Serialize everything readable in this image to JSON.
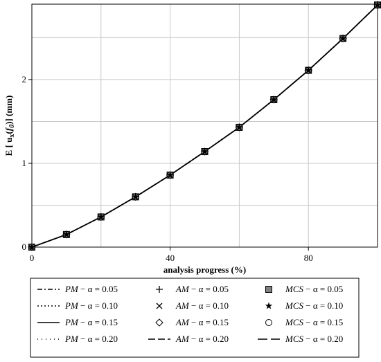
{
  "chart_data": {
    "type": "line",
    "xlabel": "analysis progress (%)",
    "ylabel_parts": {
      "prefix": "E",
      "u": "u",
      "sub": "x",
      "arg": "f",
      "arg_sub": "0",
      "unit": "(mm)"
    },
    "xlim": [
      0,
      100
    ],
    "ylim": [
      0,
      2.9
    ],
    "x_ticks": [
      0,
      40,
      80
    ],
    "y_ticks": [
      0,
      1,
      2
    ],
    "x_grid": [
      0,
      20,
      40,
      60,
      80,
      100
    ],
    "y_grid": [
      0,
      0.5,
      1,
      1.5,
      2,
      2.5
    ],
    "grid": true,
    "legend_position": "bottom",
    "x": [
      0,
      10,
      20,
      30,
      40,
      50,
      60,
      70,
      80,
      90,
      100
    ],
    "series": [
      {
        "method": "PM",
        "alpha": "0.05",
        "style": "dashdot",
        "values": [
          0,
          0.15,
          0.36,
          0.6,
          0.86,
          1.14,
          1.43,
          1.76,
          2.11,
          2.49,
          2.89
        ]
      },
      {
        "method": "PM",
        "alpha": "0.10",
        "style": "dotted",
        "values": [
          0,
          0.15,
          0.36,
          0.6,
          0.86,
          1.14,
          1.43,
          1.76,
          2.11,
          2.49,
          2.89
        ]
      },
      {
        "method": "PM",
        "alpha": "0.15",
        "style": "solid",
        "values": [
          0,
          0.15,
          0.36,
          0.6,
          0.86,
          1.14,
          1.43,
          1.76,
          2.11,
          2.49,
          2.89
        ]
      },
      {
        "method": "PM",
        "alpha": "0.20",
        "style": "sparsedot",
        "values": [
          0,
          0.15,
          0.36,
          0.6,
          0.86,
          1.14,
          1.43,
          1.76,
          2.11,
          2.49,
          2.89
        ]
      },
      {
        "method": "AM",
        "alpha": "0.05",
        "style": "plus",
        "values": [
          0,
          0.15,
          0.36,
          0.6,
          0.86,
          1.14,
          1.43,
          1.76,
          2.11,
          2.49,
          2.89
        ]
      },
      {
        "method": "AM",
        "alpha": "0.10",
        "style": "cross",
        "values": [
          0,
          0.15,
          0.36,
          0.6,
          0.86,
          1.14,
          1.43,
          1.76,
          2.11,
          2.49,
          2.89
        ]
      },
      {
        "method": "AM",
        "alpha": "0.15",
        "style": "diamond",
        "values": [
          0,
          0.15,
          0.36,
          0.6,
          0.86,
          1.14,
          1.43,
          1.76,
          2.11,
          2.49,
          2.89
        ]
      },
      {
        "method": "AM",
        "alpha": "0.20",
        "style": "dash",
        "values": [
          0,
          0.15,
          0.36,
          0.6,
          0.86,
          1.14,
          1.43,
          1.76,
          2.11,
          2.49,
          2.89
        ]
      },
      {
        "method": "MCS",
        "alpha": "0.05",
        "style": "square",
        "values": [
          0,
          0.15,
          0.36,
          0.6,
          0.86,
          1.14,
          1.43,
          1.76,
          2.11,
          2.49,
          2.89
        ]
      },
      {
        "method": "MCS",
        "alpha": "0.10",
        "style": "star",
        "values": [
          0,
          0.15,
          0.36,
          0.6,
          0.86,
          1.14,
          1.43,
          1.76,
          2.11,
          2.49,
          2.89
        ]
      },
      {
        "method": "MCS",
        "alpha": "0.15",
        "style": "circle",
        "values": [
          0,
          0.15,
          0.36,
          0.6,
          0.86,
          1.14,
          1.43,
          1.76,
          2.11,
          2.49,
          2.89
        ]
      },
      {
        "method": "MCS",
        "alpha": "0.20",
        "style": "longdash",
        "values": [
          0,
          0.15,
          0.36,
          0.6,
          0.86,
          1.14,
          1.43,
          1.76,
          2.11,
          2.49,
          2.89
        ]
      }
    ],
    "legend_entries": [
      {
        "method": "PM",
        "text": " − α = 0.05"
      },
      {
        "method": "AM",
        "text": " − α = 0.05"
      },
      {
        "method": "MCS",
        "text": " − α = 0.05"
      },
      {
        "method": "PM",
        "text": " − α = 0.10"
      },
      {
        "method": "AM",
        "text": " − α = 0.10"
      },
      {
        "method": "MCS",
        "text": " − α = 0.10"
      },
      {
        "method": "PM",
        "text": " − α = 0.15"
      },
      {
        "method": "AM",
        "text": " − α = 0.15"
      },
      {
        "method": "MCS",
        "text": " − α = 0.15"
      },
      {
        "method": "PM",
        "text": " − α = 0.20"
      },
      {
        "method": "AM",
        "text": " − α = 0.20"
      },
      {
        "method": "MCS",
        "text": " − α = 0.20"
      }
    ],
    "colors": {
      "line": "#000000",
      "grid": "#c8c8c8",
      "marker_fill": "#808080"
    }
  }
}
